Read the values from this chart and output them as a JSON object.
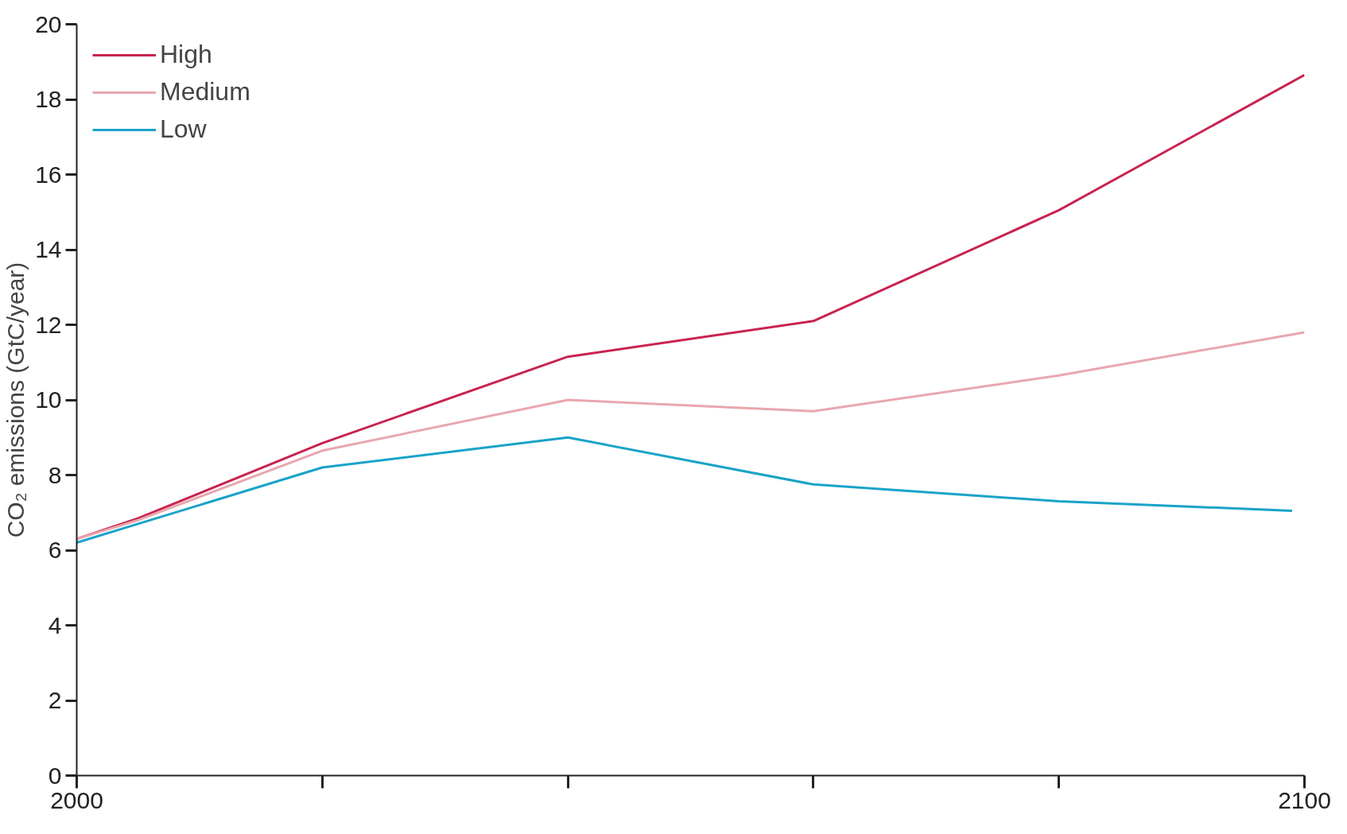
{
  "chart_data": {
    "type": "line",
    "ylabel": "CO₂ emissions (GtC/year)",
    "x": [
      2000,
      2005,
      2020,
      2040,
      2060,
      2080,
      2100
    ],
    "series": [
      {
        "name": "High",
        "color": "#c8234f",
        "values": [
          6.3,
          6.85,
          8.85,
          11.15,
          12.1,
          15.05,
          18.65
        ]
      },
      {
        "name": "Medium",
        "color": "#e8a7ae",
        "values": [
          6.3,
          6.8,
          8.65,
          10.0,
          9.7,
          10.65,
          11.8
        ]
      },
      {
        "name": "Low",
        "color": "#1aa3c8",
        "x": [
          2000,
          2005,
          2020,
          2040,
          2060,
          2080,
          2099
        ],
        "values": [
          6.2,
          6.7,
          8.2,
          9.0,
          7.75,
          7.3,
          7.05
        ]
      }
    ],
    "xlim": [
      2000,
      2100
    ],
    "xticks": [
      2000,
      {
        "value": 2020,
        "label": null
      },
      {
        "value": 2040,
        "label": null
      },
      {
        "value": 2060,
        "label": null
      },
      {
        "value": 2080,
        "label": null
      },
      2100
    ],
    "ylim": [
      0,
      20
    ],
    "yticks": [
      0,
      2,
      4,
      6,
      8,
      10,
      12,
      14,
      16,
      18,
      20
    ],
    "grid": false,
    "legend": "top left",
    "marker": "none",
    "line_style": "solid"
  }
}
